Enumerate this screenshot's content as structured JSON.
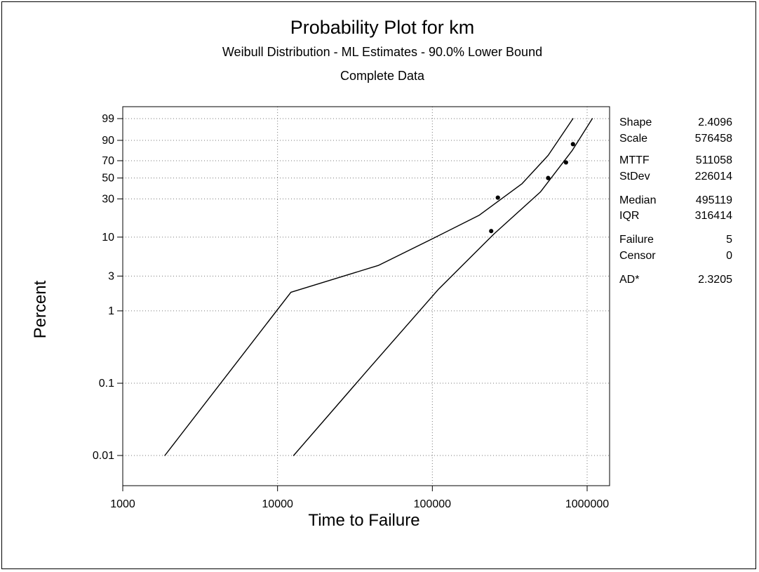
{
  "chart_data": {
    "type": "scatter",
    "title": "Probability Plot for km",
    "subtitle": "Weibull Distribution - ML Estimates - 90.0% Lower Bound",
    "subtitle2": "Complete Data",
    "xlabel": "Time to Failure",
    "ylabel": "Percent",
    "x_scale": "log",
    "y_scale": "weibull",
    "xlim": [
      1000,
      1000000
    ],
    "ylim": [
      0.01,
      99
    ],
    "x_ticks": [
      1000,
      10000,
      100000,
      1000000
    ],
    "x_tick_labels": [
      "1000",
      "10000",
      "100000",
      "1000000"
    ],
    "y_ticks": [
      0.01,
      0.1,
      1,
      3,
      10,
      30,
      50,
      70,
      90,
      99
    ],
    "y_tick_labels": [
      "0.01",
      "0.1",
      "1",
      "3",
      "10",
      "30",
      "50",
      "70",
      "90",
      "99"
    ],
    "grid": true,
    "points": [
      {
        "x": 240000,
        "y": 12
      },
      {
        "x": 265000,
        "y": 31
      },
      {
        "x": 560000,
        "y": 50
      },
      {
        "x": 730000,
        "y": 68
      },
      {
        "x": 810000,
        "y": 87
      }
    ],
    "lines": [
      {
        "points": [
          [
            1870,
            0.01
          ],
          [
            12200,
            1.8
          ],
          [
            45000,
            4.2
          ],
          [
            100000,
            9.5
          ],
          [
            200000,
            19
          ],
          [
            380000,
            44
          ],
          [
            560000,
            76
          ],
          [
            810000,
            99
          ]
        ]
      },
      {
        "points": [
          [
            12700,
            0.01
          ],
          [
            38000,
            0.15
          ],
          [
            110000,
            2
          ],
          [
            250000,
            11
          ],
          [
            500000,
            36
          ],
          [
            800000,
            81
          ],
          [
            1080000,
            99
          ]
        ]
      }
    ],
    "stats": [
      {
        "label": "Shape",
        "value": "2.4096"
      },
      {
        "label": "Scale",
        "value": "576458"
      },
      {
        "label": "MTTF",
        "value": "511058"
      },
      {
        "label": "StDev",
        "value": "226014"
      },
      {
        "label": "Median",
        "value": "495119"
      },
      {
        "label": "IQR",
        "value": "316414"
      },
      {
        "label": "Failure",
        "value": "5"
      },
      {
        "label": "Censor",
        "value": "0"
      },
      {
        "label": "AD*",
        "value": "2.3205"
      }
    ],
    "colors": {
      "line": "#000000",
      "grid": "#777777",
      "point": "#000000",
      "background": "#ffffff"
    }
  }
}
